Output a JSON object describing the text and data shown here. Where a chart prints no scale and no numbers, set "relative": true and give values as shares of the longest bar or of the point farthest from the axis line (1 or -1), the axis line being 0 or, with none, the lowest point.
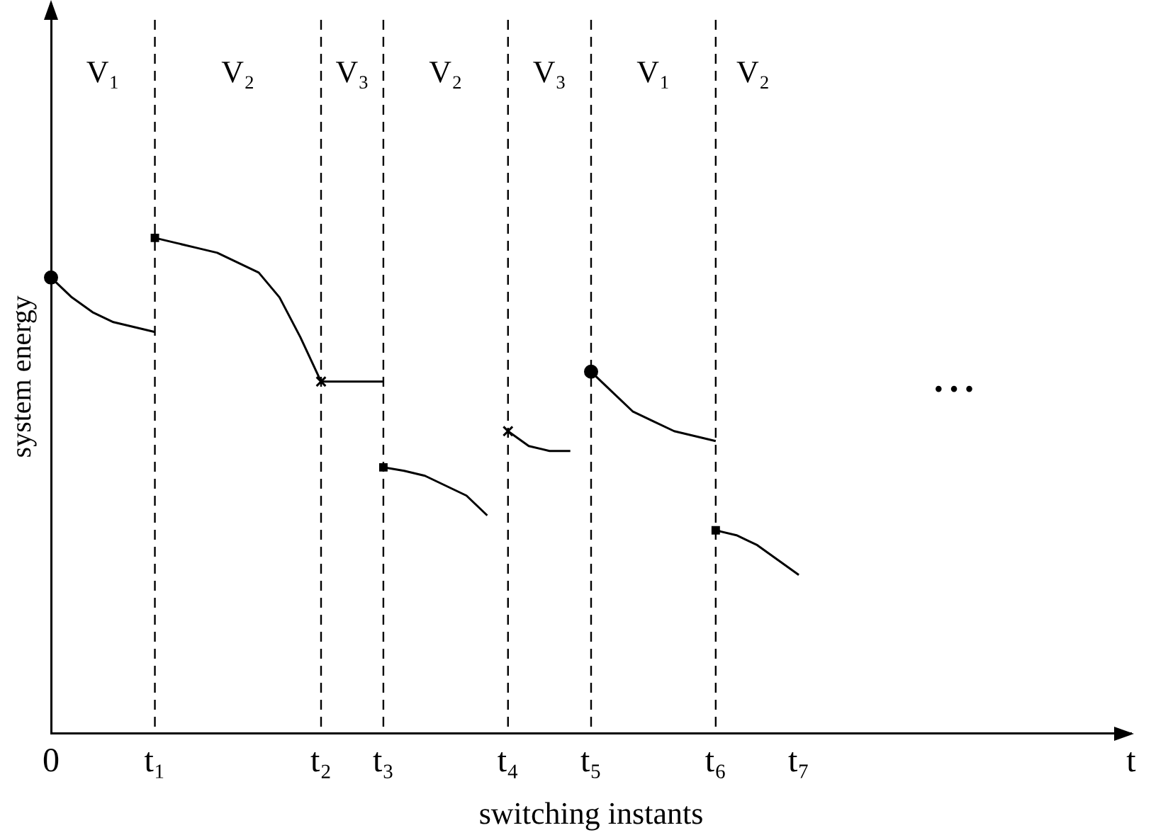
{
  "chart_data": {
    "type": "line",
    "relative": true,
    "xlabel": "switching instants",
    "ylabel": "system energy",
    "categories": [
      "0",
      null,
      null,
      null,
      null,
      "t₁",
      null,
      null,
      null,
      null,
      null,
      null,
      null,
      "t₂",
      null,
      null,
      "t₃",
      null,
      null,
      null,
      null,
      null,
      "t₄",
      null,
      null,
      null,
      "t₅",
      null,
      null,
      null,
      null,
      null,
      "t₆",
      null,
      null,
      null,
      "t₇",
      null,
      null,
      null,
      null,
      null,
      null,
      null,
      null,
      null,
      null,
      null,
      null,
      null,
      null,
      null,
      "t"
    ],
    "series": [
      {
        "color": "#000000",
        "values": [
          0.92,
          0.88,
          0.85,
          0.83,
          0.82,
          0.81,
          null,
          null,
          null,
          null,
          null,
          null,
          null,
          null,
          null,
          null,
          null,
          null,
          null,
          null,
          null,
          null,
          null,
          null,
          null,
          null,
          null,
          null,
          null,
          null,
          null,
          null,
          null,
          null,
          null,
          null,
          null,
          null,
          null,
          null,
          null,
          null,
          null,
          null,
          null,
          null,
          null,
          null,
          null,
          null,
          null,
          null,
          null
        ]
      },
      {
        "color": "#000000",
        "values": [
          null,
          null,
          null,
          null,
          null,
          1,
          0.99,
          0.98,
          0.97,
          0.95,
          0.93,
          0.88,
          0.8,
          0.71,
          null,
          null,
          0.71,
          null,
          null,
          null,
          null,
          null,
          null,
          null,
          null,
          null,
          null,
          null,
          null,
          null,
          null,
          null,
          null,
          null,
          null,
          null,
          null,
          null,
          null,
          null,
          null,
          null,
          null,
          null,
          null,
          null,
          null,
          null,
          null,
          null,
          null,
          null,
          null
        ]
      },
      {
        "color": "#000000",
        "values": [
          null,
          null,
          null,
          null,
          null,
          null,
          null,
          null,
          null,
          null,
          null,
          null,
          null,
          null,
          null,
          null,
          0.537,
          0.53,
          0.52,
          0.5,
          0.48,
          0.44,
          null,
          null,
          null,
          null,
          null,
          null,
          null,
          null,
          null,
          null,
          null,
          null,
          null,
          null,
          null,
          null,
          null,
          null,
          null,
          null,
          null,
          null,
          null,
          null,
          null,
          null,
          null,
          null,
          null,
          null,
          null
        ]
      },
      {
        "color": "#000000",
        "values": [
          null,
          null,
          null,
          null,
          null,
          null,
          null,
          null,
          null,
          null,
          null,
          null,
          null,
          null,
          null,
          null,
          null,
          null,
          null,
          null,
          null,
          null,
          0.61,
          0.58,
          0.57,
          0.57,
          null,
          null,
          null,
          null,
          null,
          null,
          null,
          null,
          null,
          null,
          null,
          null,
          null,
          null,
          null,
          null,
          null,
          null,
          null,
          null,
          null,
          null,
          null,
          null,
          null,
          null,
          null
        ]
      },
      {
        "color": "#000000",
        "values": [
          null,
          null,
          null,
          null,
          null,
          null,
          null,
          null,
          null,
          null,
          null,
          null,
          null,
          null,
          null,
          null,
          null,
          null,
          null,
          null,
          null,
          null,
          null,
          null,
          null,
          null,
          0.73,
          0.69,
          0.65,
          0.63,
          0.61,
          0.6,
          0.59,
          null,
          null,
          null,
          null,
          null,
          null,
          null,
          null,
          null,
          null,
          null,
          null,
          null,
          null,
          null,
          null,
          null,
          null,
          null,
          null
        ]
      },
      {
        "color": "#000000",
        "values": [
          null,
          null,
          null,
          null,
          null,
          null,
          null,
          null,
          null,
          null,
          null,
          null,
          null,
          null,
          null,
          null,
          null,
          null,
          null,
          null,
          null,
          null,
          null,
          null,
          null,
          null,
          null,
          null,
          null,
          null,
          null,
          null,
          0.41,
          0.4,
          0.38,
          0.35,
          0.32,
          null,
          null,
          null,
          null,
          null,
          null,
          null,
          null,
          null,
          null,
          null,
          null,
          null,
          null,
          null,
          null
        ]
      },
      {
        "type": "scatter",
        "marker": "circle",
        "color": "#000000",
        "values": [
          0.92,
          null,
          null,
          null,
          null,
          null,
          null,
          null,
          null,
          null,
          null,
          null,
          null,
          null,
          null,
          null,
          null,
          null,
          null,
          null,
          null,
          null,
          null,
          null,
          null,
          null,
          0.73,
          null,
          null,
          null,
          null,
          null,
          null,
          null,
          null,
          null,
          null,
          null,
          null,
          null,
          null,
          null,
          null,
          null,
          null,
          null,
          null,
          null,
          null,
          null,
          null,
          null,
          null
        ]
      },
      {
        "type": "scatter",
        "marker": "square",
        "color": "#000000",
        "values": [
          null,
          null,
          null,
          null,
          null,
          1,
          null,
          null,
          null,
          null,
          null,
          null,
          null,
          null,
          null,
          null,
          0.537,
          null,
          null,
          null,
          null,
          null,
          null,
          null,
          null,
          null,
          null,
          null,
          null,
          null,
          null,
          null,
          0.41,
          null,
          null,
          null,
          null,
          null,
          null,
          null,
          null,
          null,
          null,
          null,
          null,
          null,
          null,
          null,
          null,
          null,
          null,
          null,
          null
        ]
      },
      {
        "type": "scatter",
        "marker": "cross",
        "color": "#000000",
        "values": [
          null,
          null,
          null,
          null,
          null,
          null,
          null,
          null,
          null,
          null,
          null,
          null,
          null,
          0.71,
          null,
          null,
          null,
          null,
          null,
          null,
          null,
          null,
          0.61,
          null,
          null,
          null,
          null,
          null,
          null,
          null,
          null,
          null,
          null,
          null,
          null,
          null,
          null,
          null,
          null,
          null,
          null,
          null,
          null,
          null,
          null,
          null,
          null,
          null,
          null,
          null,
          null,
          null,
          null
        ]
      }
    ],
    "ref_lines": [
      {
        "axis": "x",
        "value": "t₁",
        "line_style": "dashed"
      },
      {
        "axis": "x",
        "value": "t₂",
        "line_style": "dashed"
      },
      {
        "axis": "x",
        "value": "t₃",
        "line_style": "dashed"
      },
      {
        "axis": "x",
        "value": "t₄",
        "line_style": "dashed"
      },
      {
        "axis": "x",
        "value": "t₅",
        "line_style": "dashed"
      },
      {
        "axis": "x",
        "value": "t₆",
        "line_style": "dashed"
      }
    ],
    "annotations": [
      "V₁",
      "V₂",
      "V₃",
      "V₂",
      "V₃",
      "V₁",
      "V₂",
      "• • •"
    ],
    "grid": false,
    "legend": false
  }
}
